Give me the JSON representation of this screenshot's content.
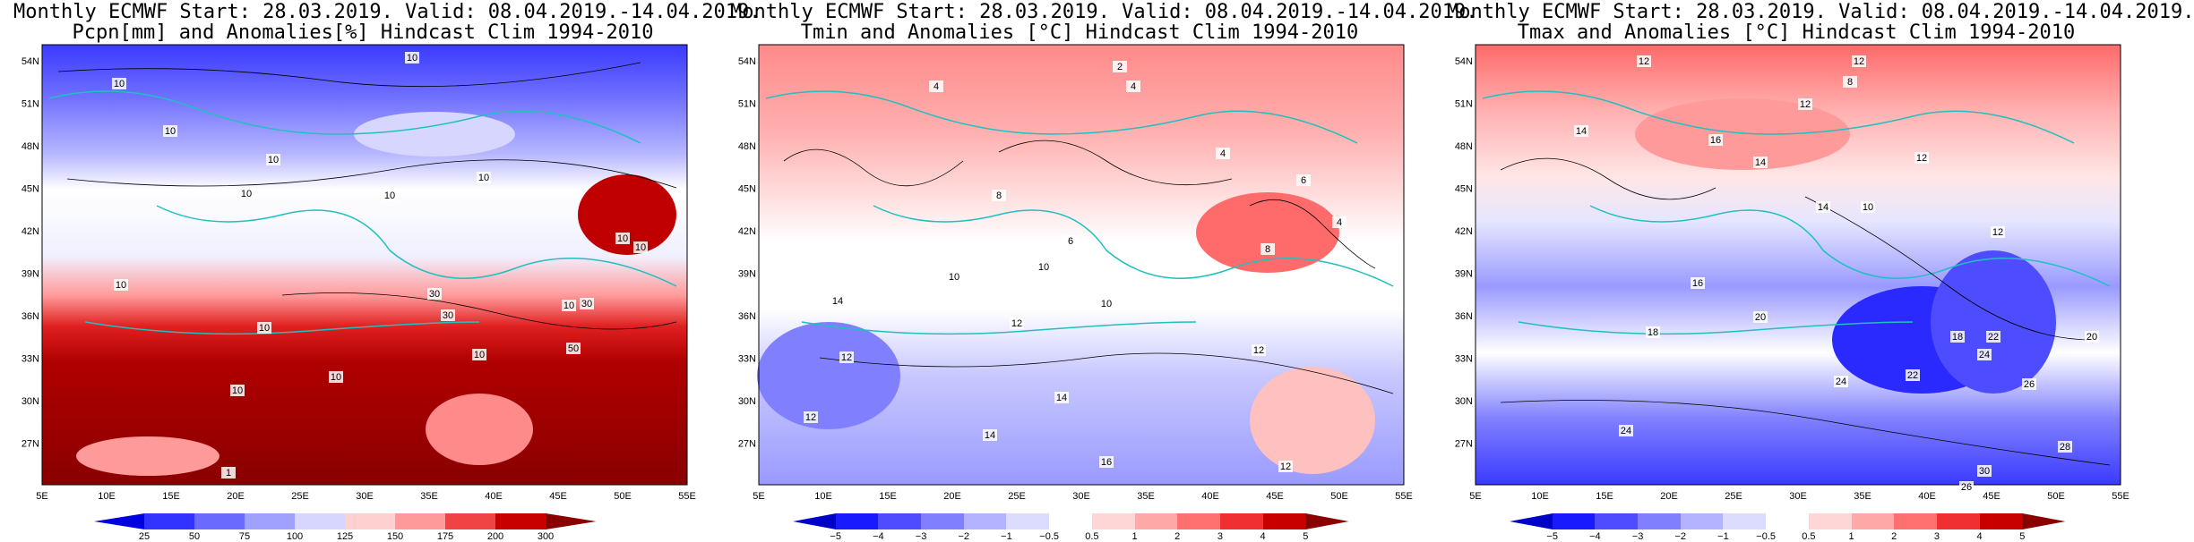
{
  "panels": [
    {
      "title1": "Monthly ECMWF Start: 28.03.2019. Valid: 08.04.2019.-14.04.2019.",
      "title2": "Pcpn[mm] and Anomalies[%] Hindcast Clim 1994-2010",
      "colorbar": {
        "ticks": [
          "25",
          "50",
          "75",
          "100",
          "125",
          "150",
          "175",
          "200",
          "300"
        ],
        "colors": [
          "#0000e0",
          "#3333ff",
          "#6a6aff",
          "#a0a0ff",
          "#d6d6ff",
          "#ffd0d0",
          "#ff9a9a",
          "#f04444",
          "#c80000",
          "#8a0000"
        ]
      },
      "contour_labels": [
        "10",
        "10",
        "10",
        "10",
        "10",
        "10",
        "10",
        "10",
        "10",
        "30",
        "10",
        "30",
        "10",
        "10",
        "50",
        "30",
        "10",
        "10",
        "10",
        "1"
      ]
    },
    {
      "title1": "Monthly ECMWF Start: 28.03.2019. Valid: 08.04.2019.-14.04.2019.",
      "title2": "Tmin and Anomalies [°C] Hindcast Clim 1994-2010",
      "colorbar": {
        "ticks": [
          "−5",
          "−4",
          "−3",
          "−2",
          "−1",
          "−0.5",
          "0.5",
          "1",
          "2",
          "3",
          "4",
          "5"
        ],
        "colors": [
          "#0000c8",
          "#1a1aff",
          "#4d4dff",
          "#8080ff",
          "#b3b3ff",
          "#dcdcff",
          "#ffffff",
          "#ffd6d6",
          "#ffa8a8",
          "#ff7070",
          "#f03030",
          "#c80000",
          "#8a0000"
        ]
      },
      "contour_labels": [
        "2",
        "4",
        "4",
        "4",
        "6",
        "4",
        "8",
        "6",
        "8",
        "10",
        "10",
        "14",
        "12",
        "10",
        "12",
        "12",
        "14",
        "12",
        "14",
        "16",
        "12"
      ]
    },
    {
      "title1": "Monthly ECMWF Start: 28.03.2019. Valid: 08.04.2019.-14.04.2019.",
      "title2": "Tmax and Anomalies [°C] Hindcast Clim 1994-2010",
      "colorbar": {
        "ticks": [
          "−5",
          "−4",
          "−3",
          "−2",
          "−1",
          "−0.5",
          "0.5",
          "1",
          "2",
          "3",
          "4",
          "5"
        ],
        "colors": [
          "#0000c8",
          "#1a1aff",
          "#4d4dff",
          "#8080ff",
          "#b3b3ff",
          "#dcdcff",
          "#ffffff",
          "#ffd6d6",
          "#ffa8a8",
          "#ff7070",
          "#f03030",
          "#c80000",
          "#8a0000"
        ]
      },
      "contour_labels": [
        "12",
        "12",
        "8",
        "12",
        "14",
        "16",
        "14",
        "12",
        "10",
        "14",
        "12",
        "16",
        "20",
        "18",
        "18",
        "22",
        "24",
        "20",
        "22",
        "24",
        "26",
        "28",
        "30",
        "26",
        "24"
      ]
    }
  ],
  "lat_labels": [
    "54N",
    "51N",
    "48N",
    "45N",
    "42N",
    "39N",
    "36N",
    "33N",
    "30N",
    "27N"
  ],
  "lon_labels": [
    "5E",
    "10E",
    "15E",
    "20E",
    "25E",
    "30E",
    "35E",
    "40E",
    "45E",
    "50E",
    "55E"
  ]
}
